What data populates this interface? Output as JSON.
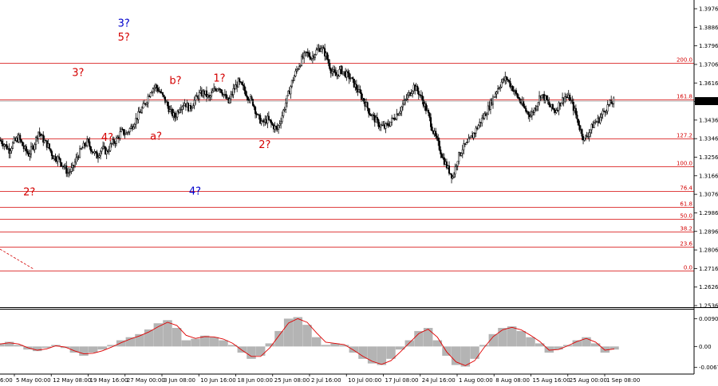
{
  "chart_data": [
    {
      "type": "candlestick",
      "title": "",
      "ylim": [
        1.2536,
        1.3976
      ],
      "y_ticks": [
        "1.3976",
        "1.3886",
        "1.3796",
        "1.3706",
        "1.3616",
        "1.3526",
        "1.3436",
        "1.3346",
        "1.3256",
        "1.3166",
        "1.3076",
        "1.2986",
        "1.2896",
        "1.2806",
        "1.2716",
        "1.2626",
        "1.2536"
      ],
      "x_ticks": [
        "5 May 00:00",
        "12 May 08:00",
        "19 May 16:00",
        "27 May 00:00",
        "3 Jun 08:00",
        "10 Jun 16:00",
        "18 Jun 00:00",
        "25 Jun 08:00",
        "2 Jul 16:00",
        "10 Jul 00:00",
        "17 Jul 08:00",
        "24 Jul 16:00",
        "1 Aug 00:00",
        "8 Aug 08:00",
        "15 Aug 16:00",
        "25 Aug 00:00",
        "1 Sep 08:00"
      ],
      "x_tick_first_partial": "6:00",
      "current_price": "1.3528",
      "fib_levels": [
        {
          "label": "200.0",
          "value": 1.3712
        },
        {
          "label": "161.8",
          "value": 1.3536
        },
        {
          "label": "127.2",
          "value": 1.3346
        },
        {
          "label": "100.0",
          "value": 1.3212
        },
        {
          "label": "76.4",
          "value": 1.3092
        },
        {
          "label": "61.8",
          "value": 1.3016
        },
        {
          "label": "50.0",
          "value": 1.2956
        },
        {
          "label": "38.2",
          "value": 1.2896
        },
        {
          "label": "23.6",
          "value": 1.282
        },
        {
          "label": "0.0",
          "value": 1.2706
        }
      ],
      "close_series": [
        1.334,
        1.332,
        1.329,
        1.333,
        1.335,
        1.33,
        1.327,
        1.331,
        1.338,
        1.334,
        1.331,
        1.326,
        1.325,
        1.322,
        1.318,
        1.32,
        1.326,
        1.33,
        1.333,
        1.329,
        1.326,
        1.33,
        1.328,
        1.332,
        1.334,
        1.338,
        1.337,
        1.34,
        1.344,
        1.348,
        1.352,
        1.358,
        1.36,
        1.357,
        1.353,
        1.348,
        1.345,
        1.35,
        1.352,
        1.349,
        1.353,
        1.356,
        1.357,
        1.354,
        1.358,
        1.36,
        1.356,
        1.352,
        1.358,
        1.362,
        1.359,
        1.355,
        1.352,
        1.345,
        1.342,
        1.344,
        1.341,
        1.339,
        1.346,
        1.354,
        1.362,
        1.368,
        1.373,
        1.376,
        1.374,
        1.377,
        1.379,
        1.375,
        1.368,
        1.365,
        1.368,
        1.366,
        1.364,
        1.36,
        1.356,
        1.352,
        1.347,
        1.344,
        1.341,
        1.34,
        1.342,
        1.345,
        1.348,
        1.352,
        1.356,
        1.36,
        1.357,
        1.352,
        1.346,
        1.338,
        1.332,
        1.325,
        1.32,
        1.316,
        1.325,
        1.33,
        1.332,
        1.336,
        1.34,
        1.344,
        1.348,
        1.353,
        1.358,
        1.362,
        1.364,
        1.36,
        1.356,
        1.352,
        1.348,
        1.346,
        1.35,
        1.356,
        1.354,
        1.35,
        1.348,
        1.352,
        1.355,
        1.354,
        1.348,
        1.34,
        1.334,
        1.338,
        1.342,
        1.344,
        1.348,
        1.351,
        1.3528
      ],
      "wave_labels": [
        {
          "text": "2?",
          "color": "#d40000",
          "x": 6,
          "y": 1.307
        },
        {
          "text": "3?",
          "color": "#d40000",
          "x": 16,
          "y": 1.365
        },
        {
          "text": "4?",
          "color": "#d40000",
          "x": 22,
          "y": 1.3335
        },
        {
          "text": "3?",
          "color": "#0000cc",
          "x": 25.4,
          "y": 1.389
        },
        {
          "text": "5?",
          "color": "#d40000",
          "x": 25.4,
          "y": 1.3822
        },
        {
          "text": "a?",
          "color": "#d40000",
          "x": 32,
          "y": 1.334
        },
        {
          "text": "b?",
          "color": "#d40000",
          "x": 36,
          "y": 1.3612
        },
        {
          "text": "4?",
          "color": "#0000cc",
          "x": 40,
          "y": 1.3075
        },
        {
          "text": "1?",
          "color": "#d40000",
          "x": 45,
          "y": 1.3622
        },
        {
          "text": "2?",
          "color": "#d40000",
          "x": 54.3,
          "y": 1.33
        }
      ]
    },
    {
      "type": "histogram",
      "indicator": "oscillator",
      "ylim": [
        -0.0079,
        0.0109
      ],
      "y_ticks": [
        "0.00901",
        "0.00",
        "-0.00679"
      ],
      "values": [
        0.001,
        0.0015,
        0.0005,
        -0.001,
        -0.0015,
        -0.0005,
        0.0005,
        -0.0005,
        -0.002,
        -0.003,
        -0.002,
        -0.001,
        0.0005,
        0.002,
        0.003,
        0.004,
        0.0055,
        0.0075,
        0.0085,
        0.006,
        0.002,
        0.0025,
        0.0035,
        0.003,
        0.002,
        0.0005,
        -0.002,
        -0.004,
        -0.003,
        0.001,
        0.005,
        0.009,
        0.0095,
        0.007,
        0.003,
        0.0005,
        0.001,
        0.0005,
        -0.002,
        -0.004,
        -0.0055,
        -0.006,
        -0.004,
        -0.001,
        0.002,
        0.005,
        0.006,
        0.002,
        -0.003,
        -0.006,
        -0.0065,
        -0.004,
        0.0005,
        0.004,
        0.006,
        0.0065,
        0.005,
        0.003,
        0.001,
        -0.002,
        -0.001,
        0.0005,
        0.002,
        0.003,
        0.001,
        -0.002,
        -0.001
      ],
      "signal": [
        0.0008,
        0.0012,
        0.0008,
        -0.0004,
        -0.0012,
        -0.0008,
        0.0002,
        -0.0002,
        -0.0014,
        -0.0024,
        -0.0022,
        -0.0014,
        -0.0002,
        0.0012,
        0.0024,
        0.0034,
        0.0047,
        0.0064,
        0.0078,
        0.0068,
        0.0036,
        0.0026,
        0.0032,
        0.0031,
        0.0024,
        0.001,
        -0.0012,
        -0.0032,
        -0.0032,
        -0.0004,
        0.0036,
        0.0076,
        0.009,
        0.0078,
        0.0044,
        0.0014,
        0.001,
        0.0006,
        -0.0012,
        -0.0032,
        -0.0048,
        -0.0058,
        -0.0046,
        -0.0018,
        0.0012,
        0.0042,
        0.0056,
        0.003,
        -0.0018,
        -0.005,
        -0.0062,
        -0.0046,
        -0.0004,
        0.0032,
        0.0054,
        0.0062,
        0.0054,
        0.0036,
        0.0016,
        -0.0012,
        -0.001,
        0.0002,
        0.0016,
        0.0026,
        0.0014,
        -0.0012,
        -0.0008
      ]
    }
  ]
}
